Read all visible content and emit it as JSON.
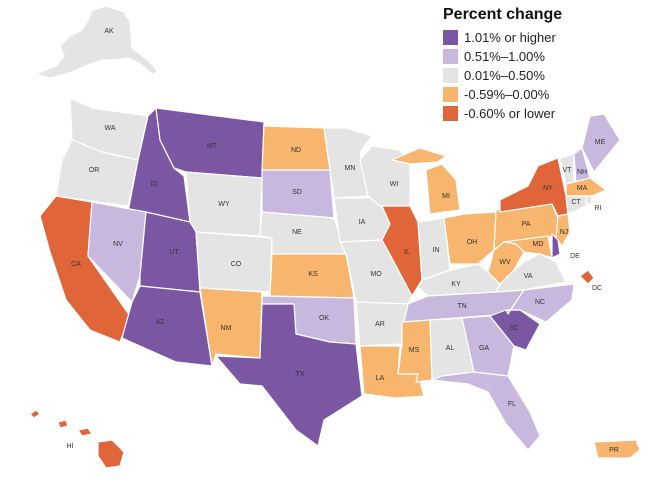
{
  "legend": {
    "title": "Percent change",
    "items": [
      {
        "label": "1.01% or higher",
        "color": "#7b57a3",
        "category": "c1"
      },
      {
        "label": "0.51%–1.00%",
        "color": "#c8b8de",
        "category": "c2"
      },
      {
        "label": "0.01%–0.50%",
        "color": "#e4e4e4",
        "category": "c3"
      },
      {
        "label": "-0.59%–0.00%",
        "color": "#f7b56d",
        "category": "c4"
      },
      {
        "label": "-0.60% or lower",
        "color": "#e0663a",
        "category": "c5"
      }
    ]
  },
  "states": {
    "AK": {
      "label": "AK",
      "category": "c3"
    },
    "HI": {
      "label": "HI",
      "category": "c5"
    },
    "PR": {
      "label": "PR",
      "category": "c4"
    },
    "WA": {
      "label": "WA",
      "category": "c3"
    },
    "OR": {
      "label": "OR",
      "category": "c3"
    },
    "CA": {
      "label": "CA",
      "category": "c5"
    },
    "ID": {
      "label": "ID",
      "category": "c1"
    },
    "NV": {
      "label": "NV",
      "category": "c2"
    },
    "MT": {
      "label": "MT",
      "category": "c1"
    },
    "WY": {
      "label": "WY",
      "category": "c3"
    },
    "UT": {
      "label": "UT",
      "category": "c1"
    },
    "AZ": {
      "label": "AZ",
      "category": "c1"
    },
    "CO": {
      "label": "CO",
      "category": "c3"
    },
    "NM": {
      "label": "NM",
      "category": "c4"
    },
    "ND": {
      "label": "ND",
      "category": "c4"
    },
    "SD": {
      "label": "SD",
      "category": "c2"
    },
    "NE": {
      "label": "NE",
      "category": "c3"
    },
    "KS": {
      "label": "KS",
      "category": "c4"
    },
    "OK": {
      "label": "OK",
      "category": "c2"
    },
    "TX": {
      "label": "TX",
      "category": "c1"
    },
    "MN": {
      "label": "MN",
      "category": "c3"
    },
    "IA": {
      "label": "IA",
      "category": "c3"
    },
    "MO": {
      "label": "MO",
      "category": "c3"
    },
    "AR": {
      "label": "AR",
      "category": "c3"
    },
    "LA": {
      "label": "LA",
      "category": "c4"
    },
    "WI": {
      "label": "WI",
      "category": "c3"
    },
    "IL": {
      "label": "IL",
      "category": "c5"
    },
    "MI": {
      "label": "MI",
      "category": "c4"
    },
    "IN": {
      "label": "IN",
      "category": "c3"
    },
    "OH": {
      "label": "OH",
      "category": "c4"
    },
    "KY": {
      "label": "KY",
      "category": "c3"
    },
    "TN": {
      "label": "TN",
      "category": "c2"
    },
    "MS": {
      "label": "MS",
      "category": "c4"
    },
    "AL": {
      "label": "AL",
      "category": "c3"
    },
    "GA": {
      "label": "GA",
      "category": "c2"
    },
    "FL": {
      "label": "FL",
      "category": "c2"
    },
    "SC": {
      "label": "SC",
      "category": "c1"
    },
    "NC": {
      "label": "NC",
      "category": "c2"
    },
    "VA": {
      "label": "VA",
      "category": "c3"
    },
    "WV": {
      "label": "WV",
      "category": "c4"
    },
    "PA": {
      "label": "PA",
      "category": "c4"
    },
    "NY": {
      "label": "NY",
      "category": "c5"
    },
    "VT": {
      "label": "VT",
      "category": "c3"
    },
    "NH": {
      "label": "NH",
      "category": "c2"
    },
    "ME": {
      "label": "ME",
      "category": "c2"
    },
    "MA": {
      "label": "MA",
      "category": "c4"
    },
    "RI": {
      "label": "RI",
      "category": "c3"
    },
    "CT": {
      "label": "CT",
      "category": "c3"
    },
    "NJ": {
      "label": "NJ",
      "category": "c4"
    },
    "DE": {
      "label": "DE",
      "category": "c1"
    },
    "MD": {
      "label": "MD",
      "category": "c4"
    },
    "DC": {
      "label": "DC",
      "category": "c5"
    }
  }
}
